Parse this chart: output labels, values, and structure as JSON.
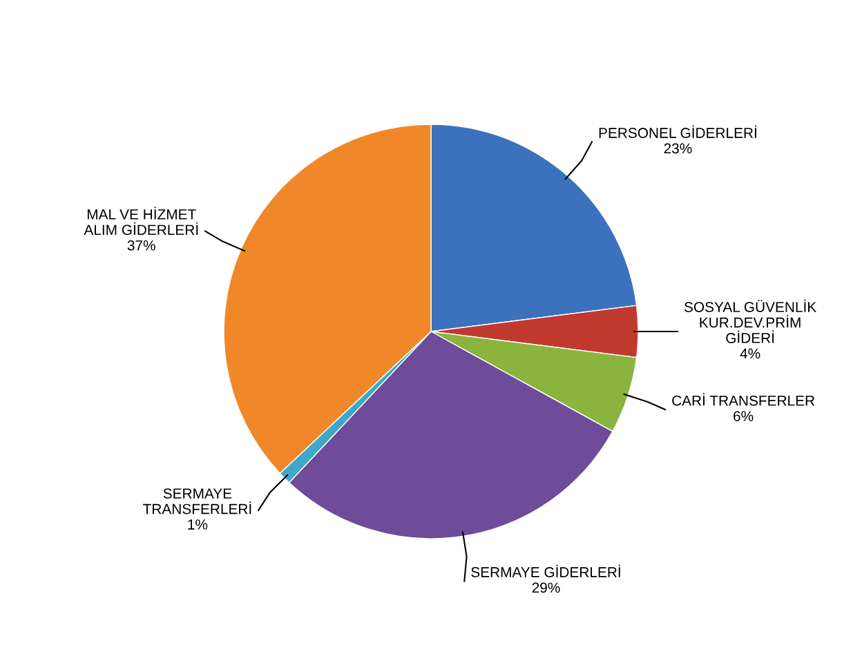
{
  "chart_data": {
    "type": "pie",
    "categories": [
      "PERSONEL GİDERLERİ",
      "SOSYAL GÜVENLİK\nKUR.DEV.PRİM\nGİDERİ",
      "CARİ TRANSFERLER",
      "SERMAYE GİDERLERİ",
      "SERMAYE\nTRANSFERLERİ",
      "MAL VE HİZMET\nALIM GİDERLERİ"
    ],
    "values": [
      23,
      4,
      6,
      29,
      1,
      37
    ],
    "colors": [
      "#3c72bd",
      "#c0392f",
      "#8ab43e",
      "#6e4c9a",
      "#3fa8c8",
      "#f0882a"
    ],
    "value_labels": [
      "23%",
      "4%",
      "6%",
      "29%",
      "1%",
      "37%"
    ],
    "legend": false
  }
}
